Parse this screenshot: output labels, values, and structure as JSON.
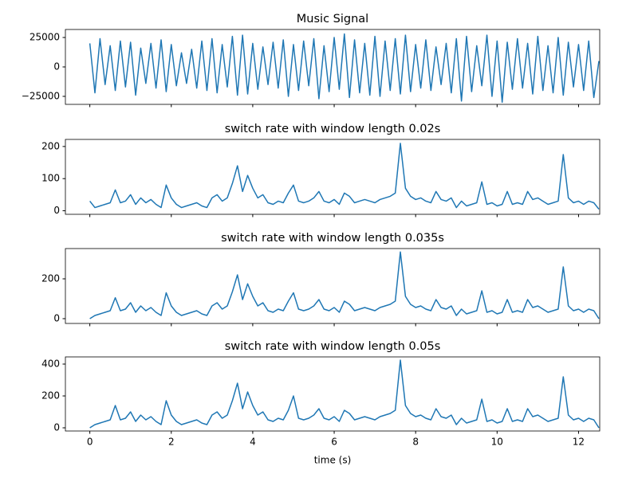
{
  "chart_data": [
    {
      "type": "line",
      "title": "Music Signal",
      "x": [
        0,
        0.125,
        0.25,
        0.375,
        0.5,
        0.625,
        0.75,
        0.875,
        1,
        1.125,
        1.25,
        1.375,
        1.5,
        1.625,
        1.75,
        1.875,
        2,
        2.125,
        2.25,
        2.375,
        2.5,
        2.625,
        2.75,
        2.875,
        3,
        3.125,
        3.25,
        3.375,
        3.5,
        3.625,
        3.75,
        3.875,
        4,
        4.125,
        4.25,
        4.375,
        4.5,
        4.625,
        4.75,
        4.875,
        5,
        5.125,
        5.25,
        5.375,
        5.5,
        5.625,
        5.75,
        5.875,
        6,
        6.125,
        6.25,
        6.375,
        6.5,
        6.625,
        6.75,
        6.875,
        7,
        7.125,
        7.25,
        7.375,
        7.5,
        7.625,
        7.75,
        7.875,
        8,
        8.125,
        8.25,
        8.375,
        8.5,
        8.625,
        8.75,
        8.875,
        9,
        9.125,
        9.25,
        9.375,
        9.5,
        9.625,
        9.75,
        9.875,
        10,
        10.125,
        10.25,
        10.375,
        10.5,
        10.625,
        10.75,
        10.875,
        11,
        11.125,
        11.25,
        11.375,
        11.5,
        11.625,
        11.75,
        11.875,
        12,
        12.125,
        12.25,
        12.375,
        12.5
      ],
      "values": [
        20000,
        -22000,
        24000,
        -15000,
        18000,
        -20000,
        22000,
        -17000,
        21000,
        -24000,
        16000,
        -14000,
        20000,
        -18000,
        23000,
        -21000,
        19000,
        -16000,
        12000,
        -14000,
        15000,
        -18000,
        22000,
        -20000,
        24000,
        -22000,
        19000,
        -17000,
        26000,
        -24000,
        27000,
        -23000,
        20000,
        -19000,
        17000,
        -15000,
        21000,
        -18000,
        23000,
        -25000,
        19000,
        -20000,
        22000,
        -16000,
        24000,
        -27000,
        18000,
        -21000,
        25000,
        -19000,
        28000,
        -26000,
        23000,
        -22000,
        20000,
        -24000,
        26000,
        -25000,
        22000,
        -20000,
        24000,
        -23000,
        27000,
        -21000,
        19000,
        -18000,
        23000,
        -20000,
        17000,
        -15000,
        20000,
        -22000,
        24000,
        -29000,
        26000,
        -21000,
        18000,
        -16000,
        27000,
        -25000,
        22000,
        -30000,
        21000,
        -19000,
        24000,
        -18000,
        20000,
        -23000,
        26000,
        -20000,
        18000,
        -22000,
        25000,
        -24000,
        21000,
        -17000,
        19000,
        -20000,
        22000,
        -26000,
        5000
      ],
      "color": "#1f77b4",
      "xlim": [
        -0.6,
        12.52
      ],
      "xticks": [
        0,
        2,
        4,
        6,
        8,
        10,
        12
      ],
      "ylim": [
        -31800,
        31800
      ],
      "yticks": [
        {
          "value": -25000,
          "label": "−25000"
        },
        0,
        25000
      ]
    },
    {
      "type": "line",
      "title": "switch rate with window length 0.02s",
      "x": [
        0,
        0.125,
        0.25,
        0.375,
        0.5,
        0.625,
        0.75,
        0.875,
        1,
        1.125,
        1.25,
        1.375,
        1.5,
        1.625,
        1.75,
        1.875,
        2,
        2.125,
        2.25,
        2.375,
        2.5,
        2.625,
        2.75,
        2.875,
        3,
        3.125,
        3.25,
        3.375,
        3.5,
        3.625,
        3.75,
        3.875,
        4,
        4.125,
        4.25,
        4.375,
        4.5,
        4.625,
        4.75,
        4.875,
        5,
        5.125,
        5.25,
        5.375,
        5.5,
        5.625,
        5.75,
        5.875,
        6,
        6.125,
        6.25,
        6.375,
        6.5,
        6.625,
        6.75,
        6.875,
        7,
        7.125,
        7.25,
        7.375,
        7.5,
        7.625,
        7.75,
        7.875,
        8,
        8.125,
        8.25,
        8.375,
        8.5,
        8.625,
        8.75,
        8.875,
        9,
        9.125,
        9.25,
        9.375,
        9.5,
        9.625,
        9.75,
        9.875,
        10,
        10.125,
        10.25,
        10.375,
        10.5,
        10.625,
        10.75,
        10.875,
        11,
        11.125,
        11.25,
        11.375,
        11.5,
        11.625,
        11.75,
        11.875,
        12,
        12.125,
        12.25,
        12.375,
        12.5
      ],
      "values": [
        30,
        10,
        15,
        20,
        25,
        65,
        25,
        30,
        50,
        20,
        40,
        25,
        35,
        20,
        10,
        80,
        40,
        20,
        10,
        15,
        20,
        25,
        15,
        10,
        40,
        50,
        30,
        40,
        85,
        140,
        60,
        110,
        70,
        40,
        50,
        25,
        20,
        30,
        25,
        55,
        80,
        30,
        25,
        30,
        40,
        60,
        30,
        25,
        35,
        20,
        55,
        45,
        25,
        30,
        35,
        30,
        25,
        35,
        40,
        45,
        55,
        210,
        70,
        45,
        35,
        40,
        30,
        25,
        60,
        35,
        30,
        40,
        10,
        30,
        15,
        20,
        25,
        90,
        20,
        25,
        15,
        20,
        60,
        20,
        25,
        20,
        60,
        35,
        40,
        30,
        20,
        25,
        30,
        175,
        40,
        25,
        30,
        20,
        30,
        25,
        5
      ],
      "color": "#1f77b4",
      "xlim": [
        -0.6,
        12.52
      ],
      "xticks": [
        0,
        2,
        4,
        6,
        8,
        10,
        12
      ],
      "ylim": [
        -11,
        222
      ],
      "yticks": [
        0,
        100,
        200
      ]
    },
    {
      "type": "line",
      "title": "switch rate with window length 0.035s",
      "x": [
        0,
        0.125,
        0.25,
        0.375,
        0.5,
        0.625,
        0.75,
        0.875,
        1,
        1.125,
        1.25,
        1.375,
        1.5,
        1.625,
        1.75,
        1.875,
        2,
        2.125,
        2.25,
        2.375,
        2.5,
        2.625,
        2.75,
        2.875,
        3,
        3.125,
        3.25,
        3.375,
        3.5,
        3.625,
        3.75,
        3.875,
        4,
        4.125,
        4.25,
        4.375,
        4.5,
        4.625,
        4.75,
        4.875,
        5,
        5.125,
        5.25,
        5.375,
        5.5,
        5.625,
        5.75,
        5.875,
        6,
        6.125,
        6.25,
        6.375,
        6.5,
        6.625,
        6.75,
        6.875,
        7,
        7.125,
        7.25,
        7.375,
        7.5,
        7.625,
        7.75,
        7.875,
        8,
        8.125,
        8.25,
        8.375,
        8.5,
        8.625,
        8.75,
        8.875,
        9,
        9.125,
        9.25,
        9.375,
        9.5,
        9.625,
        9.75,
        9.875,
        10,
        10.125,
        10.25,
        10.375,
        10.5,
        10.625,
        10.75,
        10.875,
        11,
        11.125,
        11.25,
        11.375,
        11.5,
        11.625,
        11.75,
        11.875,
        12,
        12.125,
        12.25,
        12.375,
        12.5
      ],
      "values": [
        0,
        16,
        24,
        32,
        40,
        105,
        40,
        48,
        80,
        32,
        64,
        40,
        56,
        32,
        16,
        130,
        64,
        32,
        16,
        24,
        32,
        40,
        24,
        16,
        64,
        80,
        48,
        64,
        135,
        220,
        96,
        175,
        112,
        64,
        80,
        40,
        32,
        48,
        40,
        88,
        130,
        48,
        40,
        48,
        64,
        96,
        48,
        40,
        56,
        32,
        88,
        72,
        40,
        48,
        56,
        48,
        40,
        56,
        64,
        72,
        88,
        335,
        112,
        72,
        56,
        64,
        48,
        40,
        96,
        56,
        48,
        64,
        16,
        48,
        24,
        32,
        40,
        140,
        32,
        40,
        24,
        32,
        96,
        32,
        40,
        32,
        96,
        56,
        64,
        48,
        32,
        40,
        48,
        260,
        64,
        40,
        48,
        32,
        48,
        40,
        0
      ],
      "color": "#1f77b4",
      "xlim": [
        -0.6,
        12.52
      ],
      "xticks": [
        0,
        2,
        4,
        6,
        8,
        10,
        12
      ],
      "ylim": [
        -24,
        352
      ],
      "yticks": [
        0,
        200
      ]
    },
    {
      "type": "line",
      "title": "switch rate with window length 0.05s",
      "xlabel": "time (s)",
      "x": [
        0,
        0.125,
        0.25,
        0.375,
        0.5,
        0.625,
        0.75,
        0.875,
        1,
        1.125,
        1.25,
        1.375,
        1.5,
        1.625,
        1.75,
        1.875,
        2,
        2.125,
        2.25,
        2.375,
        2.5,
        2.625,
        2.75,
        2.875,
        3,
        3.125,
        3.25,
        3.375,
        3.5,
        3.625,
        3.75,
        3.875,
        4,
        4.125,
        4.25,
        4.375,
        4.5,
        4.625,
        4.75,
        4.875,
        5,
        5.125,
        5.25,
        5.375,
        5.5,
        5.625,
        5.75,
        5.875,
        6,
        6.125,
        6.25,
        6.375,
        6.5,
        6.625,
        6.75,
        6.875,
        7,
        7.125,
        7.25,
        7.375,
        7.5,
        7.625,
        7.75,
        7.875,
        8,
        8.125,
        8.25,
        8.375,
        8.5,
        8.625,
        8.75,
        8.875,
        9,
        9.125,
        9.25,
        9.375,
        9.5,
        9.625,
        9.75,
        9.875,
        10,
        10.125,
        10.25,
        10.375,
        10.5,
        10.625,
        10.75,
        10.875,
        11,
        11.125,
        11.25,
        11.375,
        11.5,
        11.625,
        11.75,
        11.875,
        12,
        12.125,
        12.25,
        12.375,
        12.5
      ],
      "values": [
        0,
        20,
        30,
        40,
        50,
        140,
        50,
        60,
        100,
        40,
        80,
        50,
        70,
        40,
        20,
        170,
        80,
        40,
        20,
        30,
        40,
        50,
        30,
        20,
        80,
        100,
        60,
        80,
        170,
        280,
        120,
        225,
        140,
        80,
        100,
        50,
        40,
        60,
        50,
        110,
        200,
        60,
        50,
        60,
        80,
        120,
        60,
        50,
        70,
        40,
        110,
        90,
        50,
        60,
        70,
        60,
        50,
        70,
        80,
        90,
        110,
        425,
        140,
        90,
        70,
        80,
        60,
        50,
        120,
        70,
        60,
        80,
        20,
        60,
        30,
        40,
        50,
        180,
        40,
        50,
        30,
        40,
        120,
        40,
        50,
        40,
        120,
        70,
        80,
        60,
        40,
        50,
        60,
        320,
        80,
        50,
        60,
        40,
        60,
        50,
        0
      ],
      "color": "#1f77b4",
      "xlim": [
        -0.6,
        12.52
      ],
      "xticks": [
        0,
        2,
        4,
        6,
        8,
        10,
        12
      ],
      "ylim": [
        -20,
        445
      ],
      "yticks": [
        0,
        200,
        400
      ]
    }
  ]
}
